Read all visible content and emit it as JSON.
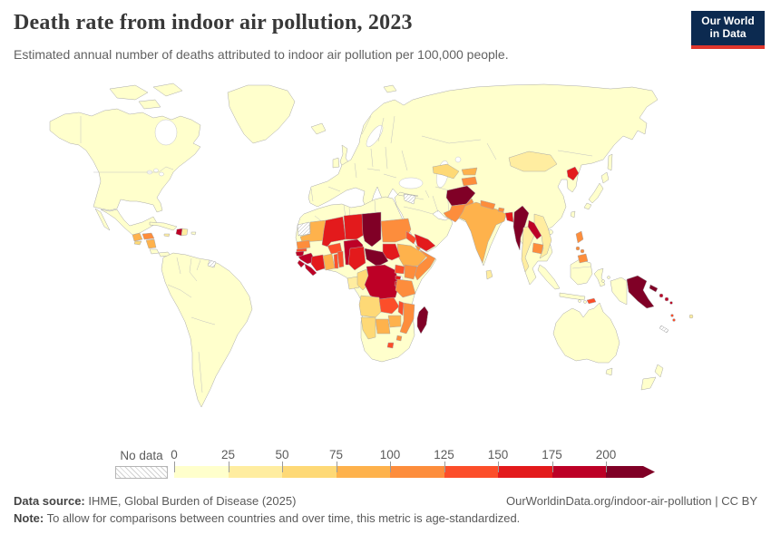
{
  "header": {
    "title": "Death rate from indoor air pollution, 2023",
    "subtitle": "Estimated annual number of deaths attributed to indoor air pollution per 100,000 people."
  },
  "logo": {
    "line1": "Our World",
    "line2": "in Data",
    "bg_color": "#0c2a50",
    "accent_color": "#e0362c"
  },
  "legend": {
    "no_data_label": "No data",
    "tick_labels": [
      "0",
      "25",
      "50",
      "75",
      "100",
      "125",
      "150",
      "175",
      "200"
    ]
  },
  "footer": {
    "source_label": "Data source:",
    "source_text": " IHME, Global Burden of Disease (2025)",
    "attribution": "OurWorldinData.org/indoor-air-pollution | CC BY",
    "note_label": "Note:",
    "note_text": " To allow for comparisons between countries and over time, this metric is age-standardized."
  },
  "chart_data": {
    "type": "heatmap",
    "subtype": "world-choropleth-map",
    "title": "Death rate from indoor air pollution, 2023",
    "unit": "deaths per 100,000 people (age-standardized)",
    "year": "2023",
    "legend_position": "bottom",
    "bin_edges": [
      0,
      25,
      50,
      75,
      100,
      125,
      150,
      175,
      200
    ],
    "open_ended_upper": true,
    "bin_colors": [
      "#ffffcc",
      "#ffeda0",
      "#fed976",
      "#feb24c",
      "#fd8d3c",
      "#fc4e2a",
      "#e31a1c",
      "#bd0026",
      "#800026"
    ],
    "no_data_style": "white-diagonal-hatch",
    "countries": {
      "united-states": {
        "name": "United States",
        "bin": 0
      },
      "canada": {
        "name": "Canada",
        "bin": 0
      },
      "greenland": {
        "name": "Greenland",
        "bin": 0
      },
      "alaska-region": {
        "name": "Alaska (United States)",
        "bin": 0
      },
      "mexico": {
        "name": "Mexico",
        "bin": 0
      },
      "baja": {
        "name": "Baja California (Mexico)",
        "bin": 0
      },
      "cuba": {
        "name": "Cuba",
        "bin": 0
      },
      "jamaica": {
        "name": "Jamaica",
        "bin": 1
      },
      "haiti": {
        "name": "Haiti",
        "bin": 7
      },
      "dominican-republic": {
        "name": "Dominican Republic",
        "bin": 1
      },
      "puerto-rico": {
        "name": "Puerto Rico",
        "bin": 0
      },
      "guatemala": {
        "name": "Guatemala",
        "bin": 3
      },
      "el-salvador": {
        "name": "El Salvador",
        "bin": 2
      },
      "honduras": {
        "name": "Honduras",
        "bin": 4
      },
      "nicaragua": {
        "name": "Nicaragua",
        "bin": 3
      },
      "costa-rica": {
        "name": "Costa Rica",
        "bin": 0
      },
      "panama": {
        "name": "Panama",
        "bin": 0
      },
      "south-america": {
        "name": "South America (Colombia, Venezuela, Ecuador, Peru, Brazil, Bolivia, Paraguay, Chile, Argentina, Uruguay, Guyana, Suriname)",
        "bin": 0
      },
      "french-guiana": {
        "name": "French Guiana",
        "bin": null
      },
      "iceland": {
        "name": "Iceland",
        "bin": 0
      },
      "united-kingdom": {
        "name": "United Kingdom",
        "bin": 0
      },
      "ireland": {
        "name": "Ireland",
        "bin": 0
      },
      "europe-russia-base": {
        "name": "Europe, Russia, China, Kazakhstan, Turkey, Iran, Iraq, Saudi Arabia, Oman (mainland base)",
        "bin": 0
      },
      "svalbard": {
        "name": "Svalbard (Norway)",
        "bin": 0
      },
      "western-sahara": {
        "name": "Western Sahara",
        "bin": null
      },
      "morocco-algeria-libya-egypt": {
        "name": "Northern Africa (Morocco, Algeria, Tunisia, Libya, Egypt)",
        "bin": 0
      },
      "mauritania": {
        "name": "Mauritania",
        "bin": 3
      },
      "senegal": {
        "name": "Senegal",
        "bin": 4
      },
      "gambia": {
        "name": "Gambia",
        "bin": 5
      },
      "guinea-bissau": {
        "name": "Guinea-Bissau",
        "bin": 7
      },
      "guinea": {
        "name": "Guinea",
        "bin": 7
      },
      "sierra-leone": {
        "name": "Sierra Leone",
        "bin": 7
      },
      "liberia": {
        "name": "Liberia",
        "bin": 7
      },
      "cote-divoire": {
        "name": "Cote d'Ivoire",
        "bin": 6
      },
      "mali": {
        "name": "Mali",
        "bin": 6
      },
      "burkina-faso": {
        "name": "Burkina Faso",
        "bin": 5
      },
      "ghana": {
        "name": "Ghana",
        "bin": 3
      },
      "togo": {
        "name": "Togo",
        "bin": 5
      },
      "benin": {
        "name": "Benin",
        "bin": 5
      },
      "niger": {
        "name": "Niger",
        "bin": 6
      },
      "nigeria": {
        "name": "Nigeria",
        "bin": 7
      },
      "chad": {
        "name": "Chad",
        "bin": 8
      },
      "sudan": {
        "name": "Sudan",
        "bin": 4
      },
      "eritrea": {
        "name": "Eritrea",
        "bin": 5
      },
      "djibouti": {
        "name": "Djibouti",
        "bin": 4
      },
      "ethiopia": {
        "name": "Ethiopia",
        "bin": 3
      },
      "somalia": {
        "name": "Somalia",
        "bin": 4
      },
      "south-sudan": {
        "name": "South Sudan",
        "bin": 6
      },
      "central-african-republic": {
        "name": "Central African Republic",
        "bin": 8
      },
      "cameroon": {
        "name": "Cameroon",
        "bin": 6
      },
      "equatorial-guinea": {
        "name": "Equatorial Guinea",
        "bin": 0
      },
      "gabon": {
        "name": "Gabon",
        "bin": 1
      },
      "congo": {
        "name": "Congo",
        "bin": 2
      },
      "democratic-republic-of-congo": {
        "name": "Democratic Republic of Congo",
        "bin": 7
      },
      "uganda": {
        "name": "Uganda",
        "bin": 5
      },
      "kenya": {
        "name": "Kenya",
        "bin": 4
      },
      "rwanda": {
        "name": "Rwanda",
        "bin": 6
      },
      "burundi": {
        "name": "Burundi",
        "bin": 6
      },
      "tanzania": {
        "name": "Tanzania",
        "bin": 4
      },
      "angola": {
        "name": "Angola",
        "bin": 2
      },
      "zambia": {
        "name": "Zambia",
        "bin": 5
      },
      "malawi": {
        "name": "Malawi",
        "bin": 5
      },
      "mozambique": {
        "name": "Mozambique",
        "bin": 4
      },
      "zimbabwe": {
        "name": "Zimbabwe",
        "bin": 3
      },
      "botswana": {
        "name": "Botswana",
        "bin": 3
      },
      "namibia": {
        "name": "Namibia",
        "bin": 2
      },
      "south-africa": {
        "name": "South Africa",
        "bin": 0
      },
      "lesotho": {
        "name": "Lesotho",
        "bin": 5
      },
      "eswatini": {
        "name": "Eswatini",
        "bin": 4
      },
      "madagascar": {
        "name": "Madagascar",
        "bin": 8
      },
      "syria": {
        "name": "Syria",
        "bin": null
      },
      "yemen": {
        "name": "Yemen",
        "bin": 6
      },
      "uzbekistan": {
        "name": "Uzbekistan",
        "bin": 2
      },
      "turkmenistan": {
        "name": "Turkmenistan",
        "bin": 0
      },
      "kyrgyzstan": {
        "name": "Kyrgyzstan",
        "bin": 3
      },
      "tajikistan": {
        "name": "Tajikistan",
        "bin": 4
      },
      "afghanistan": {
        "name": "Afghanistan",
        "bin": 8
      },
      "pakistan": {
        "name": "Pakistan",
        "bin": 4
      },
      "india": {
        "name": "India",
        "bin": 3
      },
      "nepal": {
        "name": "Nepal",
        "bin": 4
      },
      "bhutan": {
        "name": "Bhutan",
        "bin": 4
      },
      "bangladesh": {
        "name": "Bangladesh",
        "bin": 6
      },
      "sri-lanka": {
        "name": "Sri Lanka",
        "bin": 1
      },
      "myanmar": {
        "name": "Myanmar",
        "bin": 8
      },
      "thailand": {
        "name": "Thailand",
        "bin": 1
      },
      "laos": {
        "name": "Laos",
        "bin": 7
      },
      "vietnam": {
        "name": "Vietnam",
        "bin": 1
      },
      "cambodia": {
        "name": "Cambodia",
        "bin": 4
      },
      "mongolia": {
        "name": "Mongolia",
        "bin": 1
      },
      "north-korea": {
        "name": "North Korea",
        "bin": 6
      },
      "japan": {
        "name": "Japan",
        "bin": 0
      },
      "sakhalin": {
        "name": "Sakhalin (Russia)",
        "bin": 0
      },
      "taiwan": {
        "name": "Taiwan",
        "bin": 0
      },
      "hainan": {
        "name": "Hainan (China)",
        "bin": 0
      },
      "philippines": {
        "name": "Philippines",
        "bin": 4
      },
      "malaysia-indonesia": {
        "name": "Malaysia and Indonesia (islands)",
        "bin": 0
      },
      "timor-leste": {
        "name": "Timor-Leste",
        "bin": 5
      },
      "papua-new-guinea": {
        "name": "Papua New Guinea",
        "bin": 8
      },
      "solomon-islands": {
        "name": "Solomon Islands",
        "bin": 7
      },
      "vanuatu": {
        "name": "Vanuatu",
        "bin": 5
      },
      "new-caledonia": {
        "name": "New Caledonia",
        "bin": null
      },
      "fiji": {
        "name": "Fiji",
        "bin": 1
      },
      "australia": {
        "name": "Australia",
        "bin": 0
      },
      "new-zealand": {
        "name": "New Zealand",
        "bin": 0
      }
    }
  }
}
